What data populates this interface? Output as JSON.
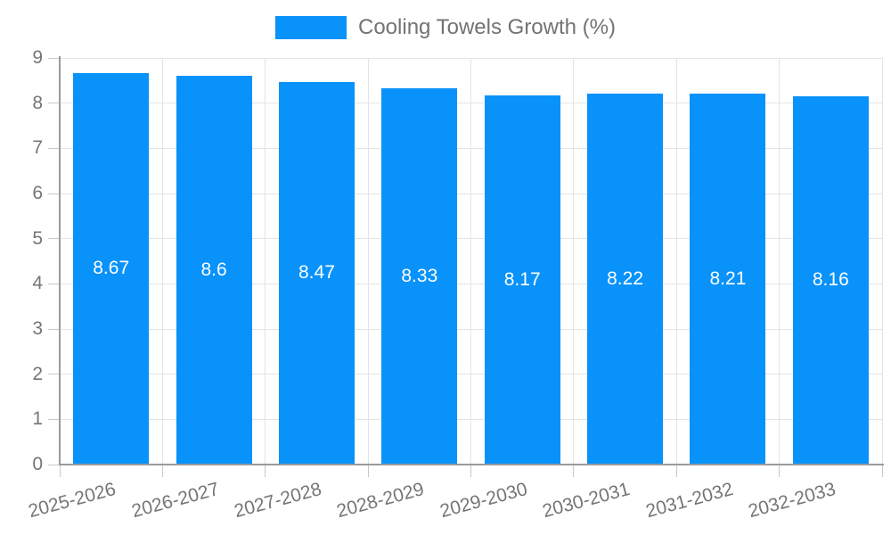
{
  "legend": {
    "label": "Cooling Towels Growth (%)"
  },
  "chart_data": {
    "type": "bar",
    "title": "Cooling Towels Growth (%)",
    "legend_position": "top",
    "categories": [
      "2025-2026",
      "2026-2027",
      "2027-2028",
      "2028-2029",
      "2029-2030",
      "2030-2031",
      "2031-2032",
      "2032-2033"
    ],
    "values": [
      8.67,
      8.6,
      8.47,
      8.33,
      8.17,
      8.22,
      8.21,
      8.16
    ],
    "xlabel": "",
    "ylabel": "",
    "ylim": [
      0,
      9
    ],
    "yticks": [
      0,
      1,
      2,
      3,
      4,
      5,
      6,
      7,
      8,
      9
    ],
    "grid": true,
    "bar_color": "#0992FA",
    "data_label_color": "#FFFFFF",
    "axis_color": "#9A9A9A",
    "grid_color": "#E4E4E4",
    "tick_color": "#C9C9C9",
    "tick_label_color": "#757575",
    "legend_text_color": "#737373",
    "background": "#FFFFFF"
  }
}
